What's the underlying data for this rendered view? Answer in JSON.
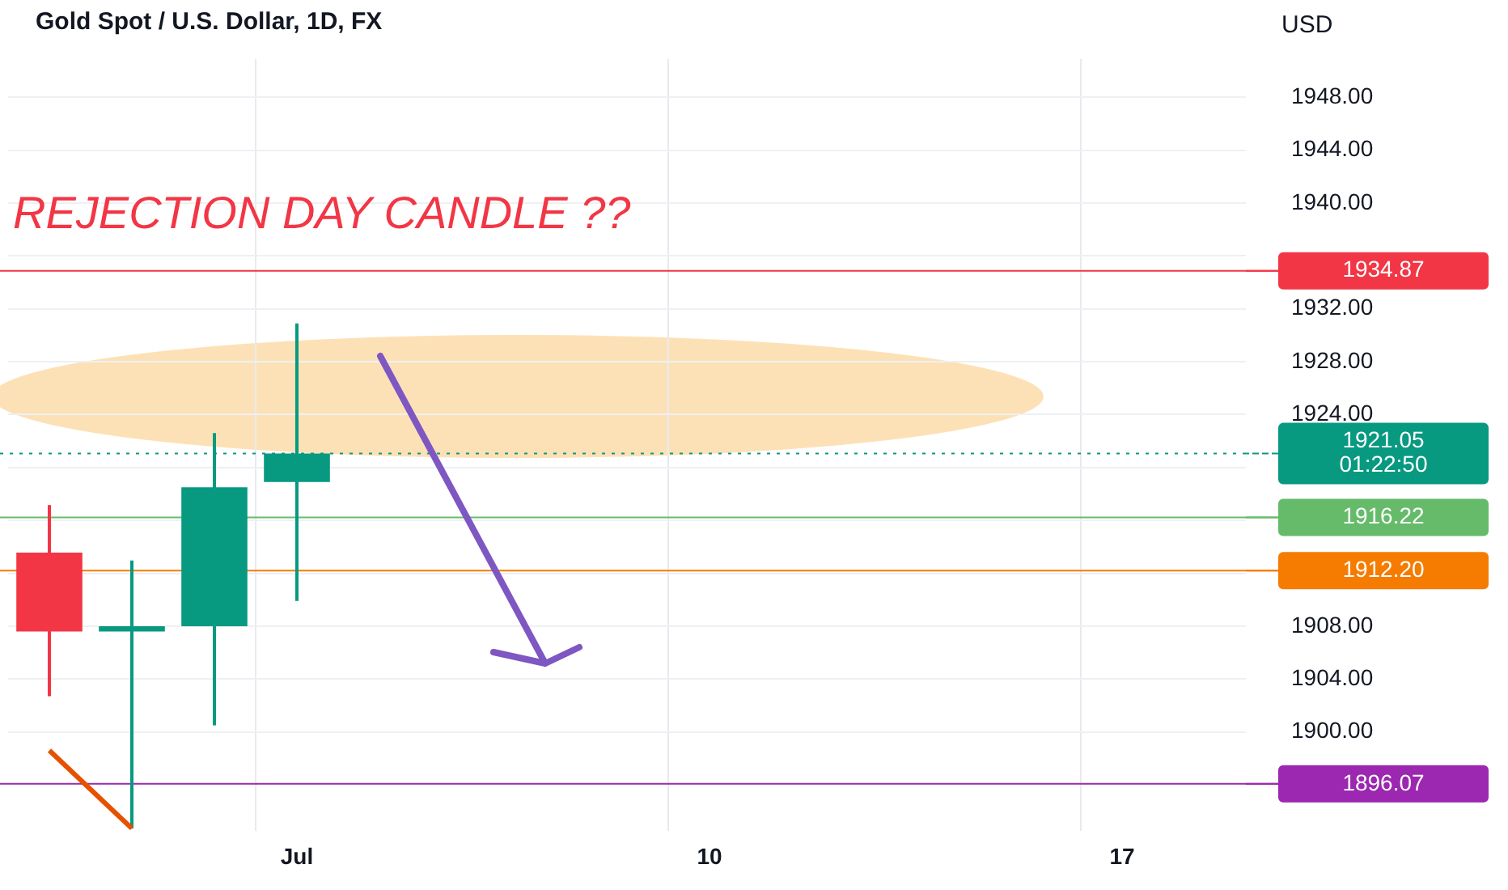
{
  "chart_data": {
    "type": "candlestick",
    "title": "Gold Spot / U.S. Dollar, 1D, FX",
    "ylabel": "USD",
    "categories": [
      null,
      null,
      null,
      "Jul",
      null,
      null,
      null,
      null,
      "10",
      null,
      null,
      null,
      null,
      "17",
      null
    ],
    "series": [
      {
        "ohlc": [
          [
            1913.56,
            1917.16,
            1902.7,
            1907.6
          ],
          [
            1907.6,
            1912.97,
            1892.7,
            1908.0
          ],
          [
            1908.0,
            1922.6,
            1900.5,
            1918.5
          ],
          [
            1918.9,
            1930.9,
            1909.9,
            1921.05
          ],
          null,
          null,
          null,
          null,
          null,
          null,
          null,
          null,
          null,
          null,
          null
        ],
        "colors": [
          "#f23645",
          "#089981",
          "#089981",
          "#089981",
          null,
          null,
          null,
          null,
          null,
          null,
          null,
          null,
          null,
          null,
          null
        ]
      },
      {
        "type": "line",
        "color": "#e65100",
        "values": [
          1898.6,
          1892.7,
          null,
          null,
          null,
          null,
          null,
          null,
          null,
          null,
          null,
          null,
          null,
          null,
          null
        ]
      }
    ],
    "ylim": [
      1892.5,
      1950.9
    ],
    "yticks": [
      {
        "value": 1900,
        "label": "1900.00"
      },
      {
        "value": 1904,
        "label": "1904.00"
      },
      {
        "value": 1908,
        "label": "1908.00"
      },
      {
        "value": 1912,
        "label": null
      },
      {
        "value": 1916,
        "label": null
      },
      {
        "value": 1920,
        "label": null
      },
      {
        "value": 1924,
        "label": "1924.00"
      },
      {
        "value": 1928,
        "label": "1928.00"
      },
      {
        "value": 1932,
        "label": "1932.00"
      },
      {
        "value": 1936,
        "label": null
      },
      {
        "value": 1940,
        "label": "1940.00"
      },
      {
        "value": 1944,
        "label": "1944.00"
      },
      {
        "value": 1948,
        "label": "1948.00"
      }
    ],
    "ref_lines": [
      {
        "axis": "y",
        "value": 1934.87,
        "label": "1934.87",
        "color": "#f23645"
      },
      {
        "axis": "y",
        "value": 1921.05,
        "label": "1921.05\n01:22:50",
        "color": "#089981",
        "line_style": "dotted"
      },
      {
        "axis": "y",
        "value": 1916.22,
        "label": "1916.22",
        "color": "#66bb6a"
      },
      {
        "axis": "y",
        "value": 1912.2,
        "label": "1912.20",
        "color": "#f57c00"
      },
      {
        "axis": "y",
        "value": 1896.07,
        "label": "1896.07",
        "color": "#9c27b0"
      }
    ],
    "annotations": [
      "REJECTION DAY CANDLE ??"
    ],
    "grid": true,
    "legend": false
  }
}
